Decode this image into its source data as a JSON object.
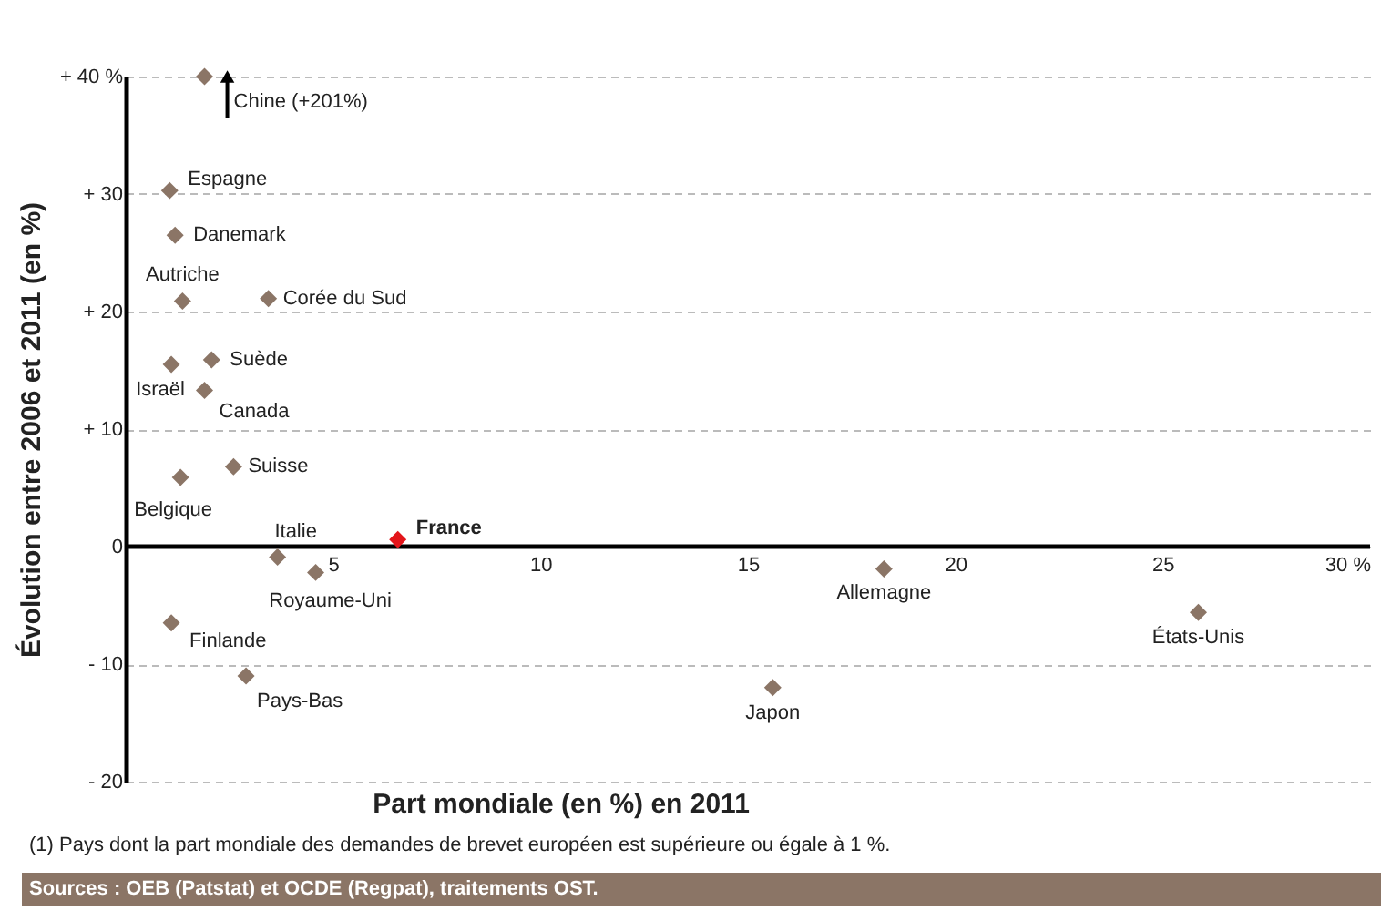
{
  "chart_data": {
    "type": "scatter",
    "xlabel": "Part mondiale (en %) en 2011",
    "ylabel": "Évolution entre 2006 et 2011 (en %)",
    "x": [
      1.9,
      1.06,
      1.19,
      1.37,
      3.44,
      1.1,
      2.07,
      1.9,
      2.6,
      1.32,
      6.56,
      3.66,
      4.58,
      1.1,
      2.9,
      18.28,
      25.86,
      15.6
    ],
    "values": [
      40,
      30.3,
      26.5,
      20.9,
      21.1,
      15.5,
      15.9,
      13.3,
      6.8,
      5.9,
      0.6,
      -0.9,
      -2.2,
      -6.5,
      -11,
      -1.9,
      -5.6,
      -12
    ],
    "colors": [
      "#8b7566",
      "#8b7566",
      "#8b7566",
      "#8b7566",
      "#8b7566",
      "#8b7566",
      "#8b7566",
      "#8b7566",
      "#8b7566",
      "#8b7566",
      "#e3151a",
      "#8b7566",
      "#8b7566",
      "#8b7566",
      "#8b7566",
      "#8b7566",
      "#8b7566",
      "#8b7566"
    ],
    "marker": "diamond",
    "xlim": [
      0,
      30
    ],
    "ylim": [
      -20,
      40
    ],
    "xticks": [
      5,
      10,
      15,
      20,
      25,
      {
        "value": 30,
        "label": "30 %"
      }
    ],
    "yticks": [
      {
        "value": -20,
        "label": "- 20"
      },
      {
        "value": -10,
        "label": "- 10"
      },
      0,
      {
        "value": 10,
        "label": "+ 10"
      },
      {
        "value": 20,
        "label": "+ 20"
      },
      {
        "value": 30,
        "label": "+ 30"
      },
      {
        "value": 40,
        "label": "+ 40 %"
      }
    ],
    "grid": "y",
    "annotations": [
      {
        "text": "Chine (+201%)",
        "x": 1.9,
        "y": 40
      },
      {
        "text": "Espagne",
        "x": 1.06,
        "y": 30.3
      },
      {
        "text": "Danemark",
        "x": 1.19,
        "y": 26.5
      },
      {
        "text": "Autriche",
        "x": 1.37,
        "y": 20.9
      },
      {
        "text": "Corée du Sud",
        "x": 3.44,
        "y": 21.1
      },
      {
        "text": "Israël",
        "x": 1.1,
        "y": 15.5
      },
      {
        "text": "Suède",
        "x": 2.07,
        "y": 15.9
      },
      {
        "text": "Canada",
        "x": 1.9,
        "y": 13.3
      },
      {
        "text": "Suisse",
        "x": 2.6,
        "y": 6.8
      },
      {
        "text": "Belgique",
        "x": 1.32,
        "y": 5.9
      },
      {
        "text": "France",
        "x": 6.56,
        "y": 0.6
      },
      {
        "text": "Italie",
        "x": 3.66,
        "y": -0.9
      },
      {
        "text": "Royaume-Uni",
        "x": 4.58,
        "y": -2.2
      },
      {
        "text": "Finlande",
        "x": 1.1,
        "y": -6.5
      },
      {
        "text": "Pays-Bas",
        "x": 2.9,
        "y": -11
      },
      {
        "text": "Allemagne",
        "x": 18.28,
        "y": -1.9
      },
      {
        "text": "États-Unis",
        "x": 25.86,
        "y": -5.6
      },
      {
        "text": "Japon",
        "x": 15.6,
        "y": -12
      },
      "(1) Pays dont la part mondiale des demandes de brevet européen est supérieure ou égale à 1 %.",
      "Sources : OEB (Patstat) et OCDE (Regpat), traitements OST."
    ]
  }
}
